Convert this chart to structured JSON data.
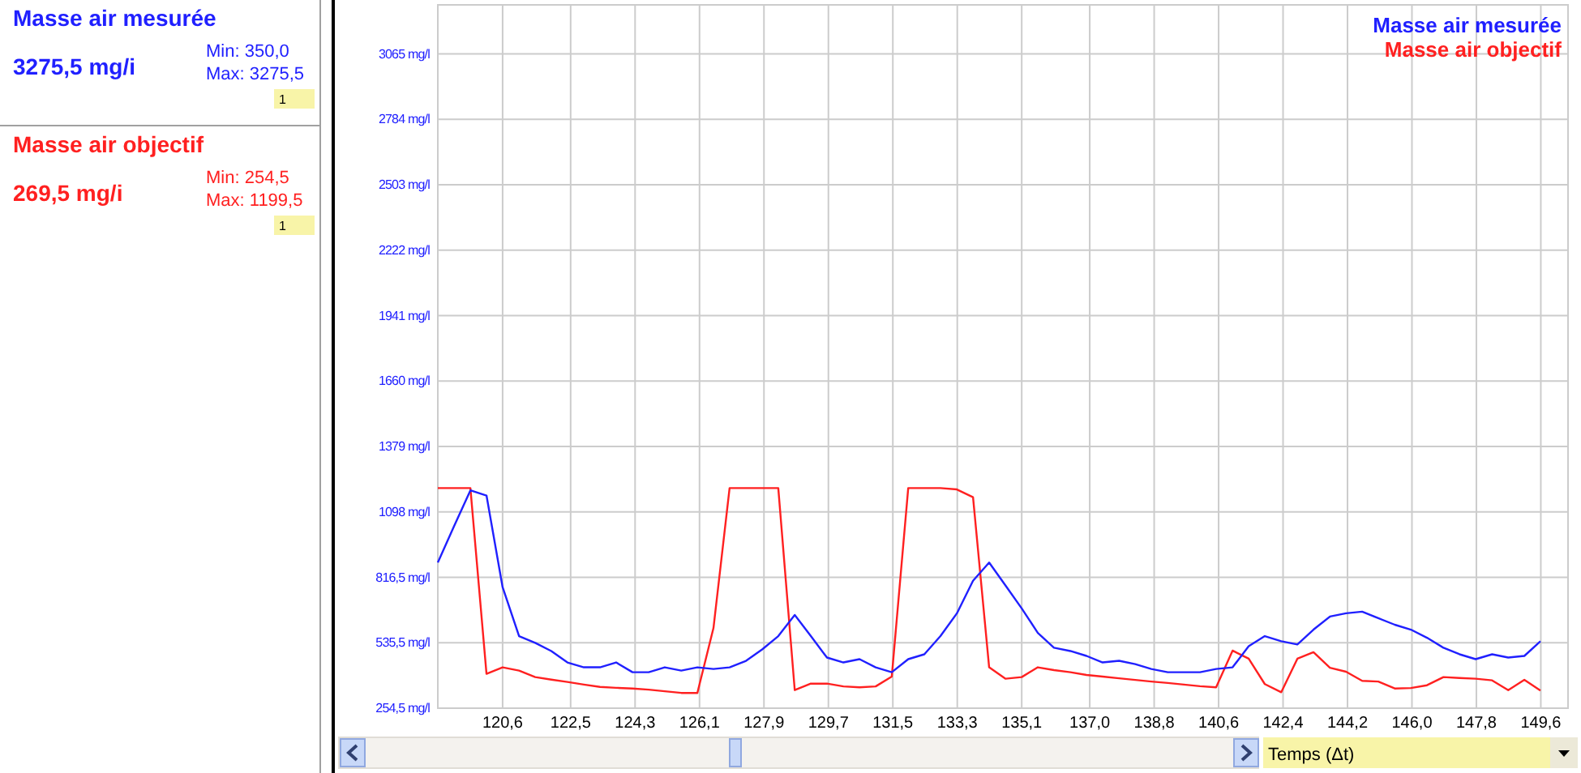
{
  "chart_data": {
    "type": "line",
    "xlabel": "Temps (Δt)",
    "x": [
      118.79,
      119.24,
      119.7,
      120.15,
      120.6,
      121.06,
      121.51,
      121.96,
      122.41,
      122.87,
      123.32,
      123.77,
      124.23,
      124.68,
      125.13,
      125.59,
      126.04,
      126.49,
      126.94,
      127.4,
      127.85,
      128.3,
      128.76,
      129.21,
      129.66,
      130.12,
      130.57,
      131.02,
      131.47,
      131.93,
      132.38,
      132.83,
      133.29,
      133.74,
      134.19,
      134.65,
      135.1,
      135.55,
      136.0,
      136.46,
      136.91,
      137.36,
      137.82,
      138.27,
      138.72,
      139.18,
      139.63,
      140.08,
      140.53,
      140.99,
      141.44,
      141.89,
      142.35,
      142.8,
      143.25,
      143.71,
      144.16,
      144.61,
      145.06,
      145.52,
      145.97,
      146.42,
      146.88,
      147.33,
      147.78,
      148.24,
      148.69,
      149.14,
      149.59
    ],
    "series": [
      {
        "name": "Masse air mesurée",
        "color": "#2020ff",
        "values": [
          880,
          1035,
          1190,
          1168,
          774,
          564,
          535,
          500,
          451,
          430,
          430,
          451,
          409,
          409,
          430,
          416,
          430,
          423,
          430,
          458,
          507,
          564,
          655,
          564,
          472,
          451,
          465,
          430,
          409,
          465,
          486,
          564,
          662,
          802,
          880,
          781,
          683,
          578,
          514,
          500,
          479,
          451,
          458,
          444,
          423,
          409,
          409,
          409,
          423,
          430,
          521,
          564,
          542,
          528,
          592,
          648,
          662,
          669,
          641,
          613,
          592,
          557,
          514,
          486,
          465,
          486,
          472,
          479,
          542
        ]
      },
      {
        "name": "Masse air objectif",
        "color": "#ff2020",
        "values": [
          1200,
          1200,
          1200,
          402,
          430,
          416,
          388,
          377,
          367,
          356,
          346,
          342,
          339,
          334,
          327,
          320,
          320,
          599,
          1200,
          1200,
          1200,
          1200,
          332,
          360,
          360,
          348,
          344,
          348,
          390,
          1200,
          1200,
          1200,
          1194,
          1161,
          430,
          381,
          388,
          430,
          418,
          409,
          397,
          390,
          383,
          376,
          369,
          363,
          356,
          349,
          344,
          502,
          467,
          358,
          323,
          467,
          495,
          428,
          411,
          372,
          369,
          339,
          341,
          353,
          388,
          384,
          381,
          374,
          332,
          376,
          330
        ]
      }
    ],
    "xlim": [
      118.79,
      150.36
    ],
    "xticks": [
      {
        "value": 120.6,
        "label": "120,6"
      },
      {
        "value": 122.5,
        "label": "122,5"
      },
      {
        "value": 124.3,
        "label": "124,3"
      },
      {
        "value": 126.1,
        "label": "126,1"
      },
      {
        "value": 127.9,
        "label": "127,9"
      },
      {
        "value": 129.7,
        "label": "129,7"
      },
      {
        "value": 131.5,
        "label": "131,5"
      },
      {
        "value": 133.3,
        "label": "133,3"
      },
      {
        "value": 135.1,
        "label": "135,1"
      },
      {
        "value": 137.0,
        "label": "137,0"
      },
      {
        "value": 138.8,
        "label": "138,8"
      },
      {
        "value": 140.6,
        "label": "140,6"
      },
      {
        "value": 142.4,
        "label": "142,4"
      },
      {
        "value": 144.2,
        "label": "144,2"
      },
      {
        "value": 146.0,
        "label": "146,0"
      },
      {
        "value": 147.8,
        "label": "147,8"
      },
      {
        "value": 149.6,
        "label": "149,6"
      }
    ],
    "ylim": [
      254.5,
      3275.5
    ],
    "yticks": [
      {
        "value": 254.5,
        "label": "254,5 mg/l"
      },
      {
        "value": 535.5,
        "label": "535,5 mg/l"
      },
      {
        "value": 816.5,
        "label": "816,5 mg/l"
      },
      {
        "value": 1098,
        "label": "1098 mg/l"
      },
      {
        "value": 1379,
        "label": "1379 mg/l"
      },
      {
        "value": 1660,
        "label": "1660 mg/l"
      },
      {
        "value": 1941,
        "label": "1941 mg/l"
      },
      {
        "value": 2222,
        "label": "2222 mg/l"
      },
      {
        "value": 2503,
        "label": "2503 mg/l"
      },
      {
        "value": 2784,
        "label": "2784 mg/l"
      },
      {
        "value": 3065,
        "label": "3065 mg/l"
      }
    ],
    "grid": true,
    "legend": "top right",
    "annotations": [
      "Masse air mesurée",
      "3275,5 mg/i",
      "Min: 350,0",
      "Max: 3275,5",
      "1",
      "Masse air objectif",
      "269,5 mg/i",
      "Min: 254,5",
      "Max: 1199,5",
      "1"
    ]
  }
}
